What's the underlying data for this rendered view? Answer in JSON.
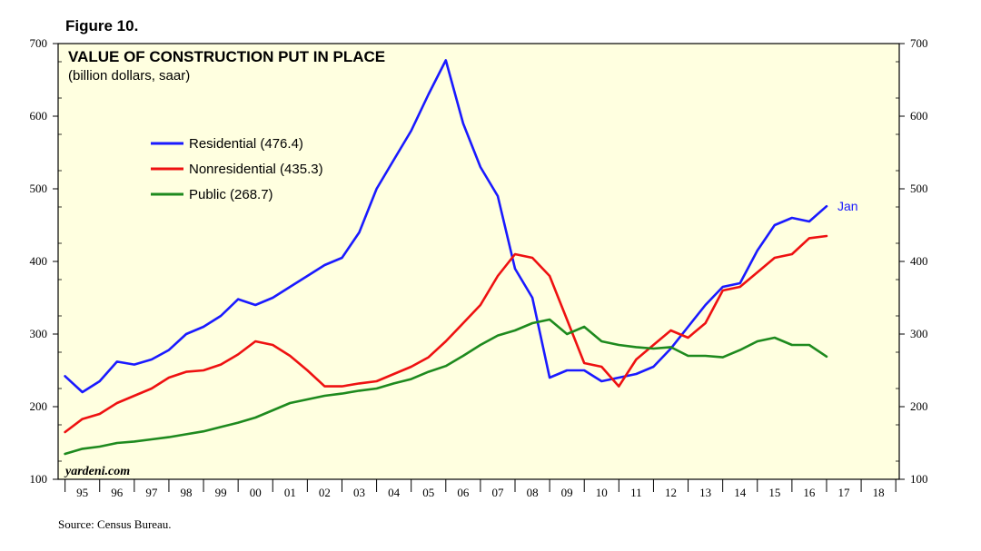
{
  "figure_label": "Figure 10.",
  "source": "Source: Census Bureau.",
  "watermark": "yardeni.com",
  "colors": {
    "Residential": "#1a1aff",
    "Nonresidential": "#ee1111",
    "Public": "#1e8a1e",
    "plot_bg": "#ffffe0"
  },
  "chart_data": {
    "type": "line",
    "title": "VALUE OF CONSTRUCTION PUT IN PLACE",
    "subtitle": "(billion dollars, saar)",
    "xlabel": "",
    "ylabel": "",
    "ylim": [
      100,
      700
    ],
    "xlim": [
      1994.8,
      2019.1
    ],
    "yticks": [
      100,
      200,
      300,
      400,
      500,
      600,
      700
    ],
    "year_labels": [
      "95",
      "96",
      "97",
      "98",
      "99",
      "00",
      "01",
      "02",
      "03",
      "04",
      "05",
      "06",
      "07",
      "08",
      "09",
      "10",
      "11",
      "12",
      "13",
      "14",
      "15",
      "16",
      "17",
      "18"
    ],
    "legend_position": "upper-left",
    "end_label": "Jan",
    "series": [
      {
        "name": "Residential",
        "legend": "Residential (476.4)",
        "points": [
          [
            1995.0,
            242
          ],
          [
            1995.5,
            220
          ],
          [
            1996.0,
            235
          ],
          [
            1996.5,
            262
          ],
          [
            1997.0,
            258
          ],
          [
            1997.5,
            265
          ],
          [
            1998.0,
            278
          ],
          [
            1998.5,
            300
          ],
          [
            1999.0,
            310
          ],
          [
            1999.5,
            325
          ],
          [
            2000.0,
            348
          ],
          [
            2000.5,
            340
          ],
          [
            2001.0,
            350
          ],
          [
            2001.5,
            365
          ],
          [
            2002.0,
            380
          ],
          [
            2002.5,
            395
          ],
          [
            2003.0,
            405
          ],
          [
            2003.5,
            440
          ],
          [
            2004.0,
            500
          ],
          [
            2004.5,
            540
          ],
          [
            2005.0,
            580
          ],
          [
            2005.5,
            630
          ],
          [
            2006.0,
            677
          ],
          [
            2006.5,
            590
          ],
          [
            2007.0,
            530
          ],
          [
            2007.5,
            490
          ],
          [
            2008.0,
            390
          ],
          [
            2008.5,
            350
          ],
          [
            2009.0,
            240
          ],
          [
            2009.5,
            250
          ],
          [
            2010.0,
            250
          ],
          [
            2010.5,
            235
          ],
          [
            2011.0,
            240
          ],
          [
            2011.5,
            245
          ],
          [
            2012.0,
            255
          ],
          [
            2012.5,
            280
          ],
          [
            2013.0,
            310
          ],
          [
            2013.5,
            340
          ],
          [
            2014.0,
            365
          ],
          [
            2014.5,
            370
          ],
          [
            2015.0,
            415
          ],
          [
            2015.5,
            450
          ],
          [
            2016.0,
            460
          ],
          [
            2016.5,
            455
          ],
          [
            2017.0,
            476
          ]
        ]
      },
      {
        "name": "Nonresidential",
        "legend": "Nonresidential (435.3)",
        "points": [
          [
            1995.0,
            165
          ],
          [
            1995.5,
            183
          ],
          [
            1996.0,
            190
          ],
          [
            1996.5,
            205
          ],
          [
            1997.0,
            215
          ],
          [
            1997.5,
            225
          ],
          [
            1998.0,
            240
          ],
          [
            1998.5,
            248
          ],
          [
            1999.0,
            250
          ],
          [
            1999.5,
            258
          ],
          [
            2000.0,
            272
          ],
          [
            2000.5,
            290
          ],
          [
            2001.0,
            285
          ],
          [
            2001.5,
            270
          ],
          [
            2002.0,
            250
          ],
          [
            2002.5,
            228
          ],
          [
            2003.0,
            228
          ],
          [
            2003.5,
            232
          ],
          [
            2004.0,
            235
          ],
          [
            2004.5,
            245
          ],
          [
            2005.0,
            255
          ],
          [
            2005.5,
            268
          ],
          [
            2006.0,
            290
          ],
          [
            2006.5,
            315
          ],
          [
            2007.0,
            340
          ],
          [
            2007.5,
            380
          ],
          [
            2008.0,
            410
          ],
          [
            2008.5,
            405
          ],
          [
            2009.0,
            380
          ],
          [
            2009.5,
            320
          ],
          [
            2010.0,
            260
          ],
          [
            2010.5,
            255
          ],
          [
            2011.0,
            228
          ],
          [
            2011.5,
            265
          ],
          [
            2012.0,
            285
          ],
          [
            2012.5,
            305
          ],
          [
            2013.0,
            295
          ],
          [
            2013.5,
            315
          ],
          [
            2014.0,
            360
          ],
          [
            2014.5,
            365
          ],
          [
            2015.0,
            385
          ],
          [
            2015.5,
            405
          ],
          [
            2016.0,
            410
          ],
          [
            2016.5,
            432
          ],
          [
            2017.0,
            435
          ]
        ]
      },
      {
        "name": "Public",
        "legend": "Public (268.7)",
        "points": [
          [
            1995.0,
            135
          ],
          [
            1995.5,
            142
          ],
          [
            1996.0,
            145
          ],
          [
            1996.5,
            150
          ],
          [
            1997.0,
            152
          ],
          [
            1997.5,
            155
          ],
          [
            1998.0,
            158
          ],
          [
            1998.5,
            162
          ],
          [
            1999.0,
            166
          ],
          [
            1999.5,
            172
          ],
          [
            2000.0,
            178
          ],
          [
            2000.5,
            185
          ],
          [
            2001.0,
            195
          ],
          [
            2001.5,
            205
          ],
          [
            2002.0,
            210
          ],
          [
            2002.5,
            215
          ],
          [
            2003.0,
            218
          ],
          [
            2003.5,
            222
          ],
          [
            2004.0,
            225
          ],
          [
            2004.5,
            232
          ],
          [
            2005.0,
            238
          ],
          [
            2005.5,
            248
          ],
          [
            2006.0,
            256
          ],
          [
            2006.5,
            270
          ],
          [
            2007.0,
            285
          ],
          [
            2007.5,
            298
          ],
          [
            2008.0,
            305
          ],
          [
            2008.5,
            315
          ],
          [
            2009.0,
            320
          ],
          [
            2009.5,
            300
          ],
          [
            2010.0,
            310
          ],
          [
            2010.5,
            290
          ],
          [
            2011.0,
            285
          ],
          [
            2011.5,
            282
          ],
          [
            2012.0,
            280
          ],
          [
            2012.5,
            282
          ],
          [
            2013.0,
            270
          ],
          [
            2013.5,
            270
          ],
          [
            2014.0,
            268
          ],
          [
            2014.5,
            278
          ],
          [
            2015.0,
            290
          ],
          [
            2015.5,
            295
          ],
          [
            2016.0,
            285
          ],
          [
            2016.5,
            285
          ],
          [
            2017.0,
            269
          ]
        ]
      }
    ]
  }
}
